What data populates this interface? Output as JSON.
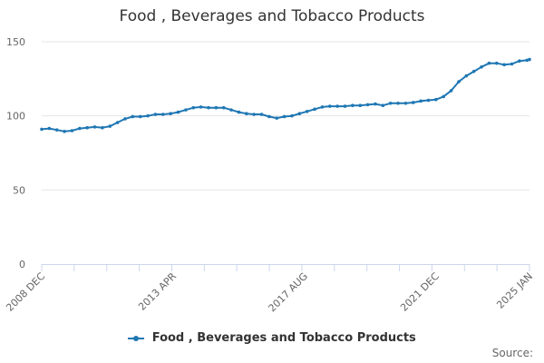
{
  "chart_data": {
    "type": "line",
    "title": "Food , Beverages and Tobacco Products",
    "xlabel": "",
    "ylabel": "",
    "ylim": [
      0,
      150
    ],
    "yticks": [
      0,
      50,
      100,
      150
    ],
    "x_start": "2008 DEC",
    "x_end": "2025 JAN",
    "xticks": [
      {
        "label": "2008 DEC",
        "date": "2008-12"
      },
      {
        "label": "2013 APR",
        "date": "2013-04"
      },
      {
        "label": "2017 AUG",
        "date": "2017-08"
      },
      {
        "label": "2021 DEC",
        "date": "2021-12"
      },
      {
        "label": "2025 JAN",
        "date": "2025-01"
      }
    ],
    "grid": true,
    "legend_position": "bottom",
    "series": [
      {
        "name": "Food , Beverages and Tobacco Products",
        "color": "#1f77b4",
        "points": [
          {
            "x": "2008-12",
            "y": 91
          },
          {
            "x": "2009-03",
            "y": 91.5
          },
          {
            "x": "2009-06",
            "y": 90.5
          },
          {
            "x": "2009-09",
            "y": 89.5
          },
          {
            "x": "2009-12",
            "y": 90
          },
          {
            "x": "2010-03",
            "y": 91.5
          },
          {
            "x": "2010-06",
            "y": 92
          },
          {
            "x": "2010-09",
            "y": 92.5
          },
          {
            "x": "2010-12",
            "y": 92
          },
          {
            "x": "2011-03",
            "y": 93
          },
          {
            "x": "2011-06",
            "y": 95.5
          },
          {
            "x": "2011-09",
            "y": 98
          },
          {
            "x": "2011-12",
            "y": 99.5
          },
          {
            "x": "2012-03",
            "y": 99.5
          },
          {
            "x": "2012-06",
            "y": 100
          },
          {
            "x": "2012-09",
            "y": 101
          },
          {
            "x": "2012-12",
            "y": 101
          },
          {
            "x": "2013-03",
            "y": 101.5
          },
          {
            "x": "2013-06",
            "y": 102.5
          },
          {
            "x": "2013-09",
            "y": 104
          },
          {
            "x": "2013-12",
            "y": 105.5
          },
          {
            "x": "2014-03",
            "y": 106
          },
          {
            "x": "2014-06",
            "y": 105.5
          },
          {
            "x": "2014-09",
            "y": 105.5
          },
          {
            "x": "2014-12",
            "y": 105.5
          },
          {
            "x": "2015-03",
            "y": 104
          },
          {
            "x": "2015-06",
            "y": 102.5
          },
          {
            "x": "2015-09",
            "y": 101.5
          },
          {
            "x": "2015-12",
            "y": 101
          },
          {
            "x": "2016-03",
            "y": 101
          },
          {
            "x": "2016-06",
            "y": 99.5
          },
          {
            "x": "2016-09",
            "y": 98.5
          },
          {
            "x": "2016-12",
            "y": 99.5
          },
          {
            "x": "2017-03",
            "y": 100
          },
          {
            "x": "2017-06",
            "y": 101.5
          },
          {
            "x": "2017-09",
            "y": 103
          },
          {
            "x": "2017-12",
            "y": 104.5
          },
          {
            "x": "2018-03",
            "y": 106
          },
          {
            "x": "2018-06",
            "y": 106.5
          },
          {
            "x": "2018-09",
            "y": 106.5
          },
          {
            "x": "2018-12",
            "y": 106.5
          },
          {
            "x": "2019-03",
            "y": 107
          },
          {
            "x": "2019-06",
            "y": 107
          },
          {
            "x": "2019-09",
            "y": 107.5
          },
          {
            "x": "2019-12",
            "y": 108
          },
          {
            "x": "2020-03",
            "y": 107
          },
          {
            "x": "2020-06",
            "y": 108.5
          },
          {
            "x": "2020-09",
            "y": 108.5
          },
          {
            "x": "2020-12",
            "y": 108.5
          },
          {
            "x": "2021-03",
            "y": 109
          },
          {
            "x": "2021-06",
            "y": 110
          },
          {
            "x": "2021-09",
            "y": 110.5
          },
          {
            "x": "2021-12",
            "y": 111
          },
          {
            "x": "2022-03",
            "y": 113
          },
          {
            "x": "2022-06",
            "y": 117
          },
          {
            "x": "2022-09",
            "y": 123
          },
          {
            "x": "2022-12",
            "y": 127
          },
          {
            "x": "2023-03",
            "y": 130
          },
          {
            "x": "2023-06",
            "y": 133
          },
          {
            "x": "2023-09",
            "y": 135.5
          },
          {
            "x": "2023-12",
            "y": 135.5
          },
          {
            "x": "2024-03",
            "y": 134.5
          },
          {
            "x": "2024-06",
            "y": 135
          },
          {
            "x": "2024-09",
            "y": 137
          },
          {
            "x": "2024-12",
            "y": 137.5
          },
          {
            "x": "2025-01",
            "y": 138
          }
        ]
      }
    ]
  },
  "source_label": "Source:",
  "colors": {
    "series": "#1f77b4",
    "grid": "#e6e6e6",
    "axis": "#ccd6eb"
  }
}
